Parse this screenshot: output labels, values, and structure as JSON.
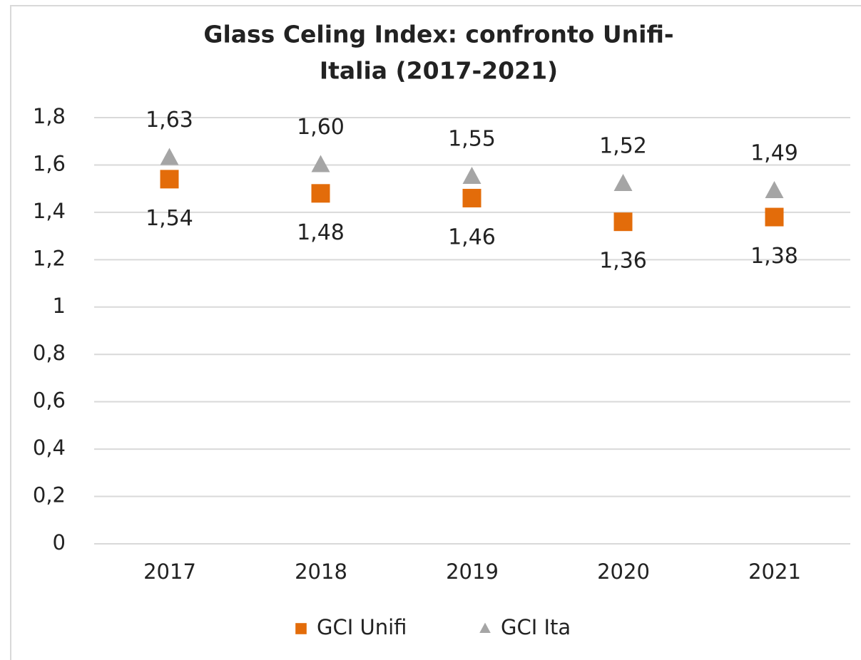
{
  "chart_data": {
    "type": "scatter",
    "title": [
      "Glass Celing Index: confronto Unifi-",
      "Italia (2017-2021)"
    ],
    "categories": [
      "2017",
      "2018",
      "2019",
      "2020",
      "2021"
    ],
    "series": [
      {
        "name": "GCI Unifi",
        "color": "#e36c0a",
        "marker": "square",
        "label_position": "below",
        "values": [
          1.54,
          1.48,
          1.46,
          1.36,
          1.38
        ],
        "value_labels": [
          "1,54",
          "1,48",
          "1,46",
          "1,36",
          "1,38"
        ]
      },
      {
        "name": "GCI Ita",
        "color": "#a5a5a5",
        "marker": "triangle",
        "label_position": "above",
        "values": [
          1.63,
          1.6,
          1.55,
          1.52,
          1.49
        ],
        "value_labels": [
          "1,63",
          "1,60",
          "1,55",
          "1,52",
          "1,49"
        ]
      }
    ],
    "ylim": [
      0,
      1.8
    ],
    "yticks": [
      0,
      {
        "value": 0.2,
        "label": "0,2"
      },
      {
        "value": 0.4,
        "label": "0,4"
      },
      {
        "value": 0.6,
        "label": "0,6"
      },
      {
        "value": 0.8,
        "label": "0,8"
      },
      1,
      {
        "value": 1.2,
        "label": "1,2"
      },
      {
        "value": 1.4,
        "label": "1,4"
      },
      {
        "value": 1.6,
        "label": "1,6"
      },
      {
        "value": 1.8,
        "label": "1,8"
      }
    ],
    "grid": true,
    "legend": "bottom"
  }
}
